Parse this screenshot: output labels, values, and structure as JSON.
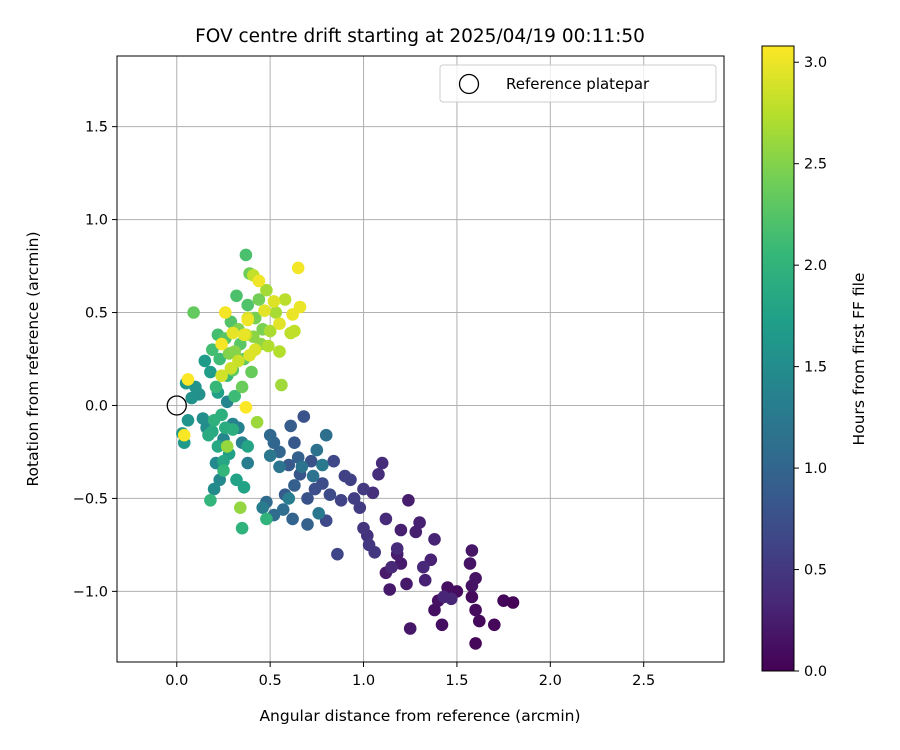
{
  "chart_data": {
    "type": "scatter",
    "title": "FOV centre drift starting at 2025/04/19 00:11:50",
    "xlabel": "Angular distance from reference (arcmin)",
    "ylabel": "Rotation from reference (arcmin)",
    "xlim": [
      -0.32,
      2.93
    ],
    "ylim": [
      -1.38,
      1.88
    ],
    "xticks": [
      0.0,
      0.5,
      1.0,
      1.5,
      2.0,
      2.5
    ],
    "xtick_labels": [
      "0.0",
      "0.5",
      "1.0",
      "1.5",
      "2.0",
      "2.5"
    ],
    "yticks": [
      -1.0,
      -0.5,
      0.0,
      0.5,
      1.0,
      1.5
    ],
    "ytick_labels": [
      "−1.0",
      "−0.5",
      "0.0",
      "0.5",
      "1.0",
      "1.5"
    ],
    "grid": true,
    "legend": {
      "position": "top-right",
      "entries": [
        "Reference platepar"
      ]
    },
    "reference_point": {
      "x": 0.0,
      "y": 0.0,
      "label": "Reference platepar"
    },
    "colorbar": {
      "label": "Hours from first FF file",
      "colormap": "viridis",
      "range": [
        0.0,
        3.08
      ],
      "ticks": [
        0.0,
        0.5,
        1.0,
        1.5,
        2.0,
        2.5,
        3.0
      ],
      "tick_labels": [
        "0.0",
        "0.5",
        "1.0",
        "1.5",
        "2.0",
        "2.5",
        "3.0"
      ]
    },
    "points": [
      [
        1.8,
        -1.06,
        0.02
      ],
      [
        1.75,
        -1.05,
        0.04
      ],
      [
        1.6,
        -1.28,
        0.05
      ],
      [
        1.7,
        -1.18,
        0.06
      ],
      [
        1.62,
        -1.16,
        0.07
      ],
      [
        1.58,
        -1.03,
        0.08
      ],
      [
        1.6,
        -1.1,
        0.09
      ],
      [
        1.5,
        -1.0,
        0.1
      ],
      [
        1.45,
        -0.98,
        0.11
      ],
      [
        1.42,
        -1.18,
        0.12
      ],
      [
        1.38,
        -1.1,
        0.13
      ],
      [
        1.4,
        -1.05,
        0.14
      ],
      [
        1.58,
        -0.97,
        0.15
      ],
      [
        1.6,
        -0.93,
        0.16
      ],
      [
        1.57,
        -0.85,
        0.17
      ],
      [
        1.58,
        -0.78,
        0.18
      ],
      [
        1.25,
        -1.2,
        0.19
      ],
      [
        1.23,
        -0.96,
        0.2
      ],
      [
        1.14,
        -0.99,
        0.21
      ],
      [
        1.12,
        -0.9,
        0.22
      ],
      [
        1.2,
        -0.85,
        0.23
      ],
      [
        1.18,
        -0.8,
        0.24
      ],
      [
        1.24,
        -0.51,
        0.25
      ],
      [
        1.2,
        -0.67,
        0.26
      ],
      [
        1.28,
        -0.68,
        0.27
      ],
      [
        1.3,
        -0.63,
        0.28
      ],
      [
        1.33,
        -0.94,
        0.29
      ],
      [
        1.36,
        -0.83,
        0.3
      ],
      [
        1.38,
        -0.72,
        0.31
      ],
      [
        1.43,
        -1.03,
        0.32
      ],
      [
        1.47,
        -1.04,
        0.33
      ],
      [
        1.32,
        -0.87,
        0.34
      ],
      [
        1.15,
        -0.87,
        0.35
      ],
      [
        1.18,
        -0.77,
        0.36
      ],
      [
        1.12,
        -0.61,
        0.37
      ],
      [
        1.1,
        -0.31,
        0.38
      ],
      [
        1.08,
        -0.37,
        0.4
      ],
      [
        1.05,
        -0.47,
        0.42
      ],
      [
        1.02,
        -0.7,
        0.44
      ],
      [
        1.0,
        -0.66,
        0.46
      ],
      [
        1.06,
        -0.79,
        0.48
      ],
      [
        1.03,
        -0.75,
        0.5
      ],
      [
        1.0,
        -0.45,
        0.52
      ],
      [
        0.98,
        -0.55,
        0.54
      ],
      [
        0.95,
        -0.5,
        0.56
      ],
      [
        0.93,
        -0.4,
        0.58
      ],
      [
        0.9,
        -0.38,
        0.6
      ],
      [
        0.88,
        -0.51,
        0.62
      ],
      [
        0.86,
        -0.8,
        0.64
      ],
      [
        0.84,
        -0.3,
        0.66
      ],
      [
        0.8,
        -0.62,
        0.68
      ],
      [
        0.82,
        -0.48,
        0.7
      ],
      [
        0.78,
        -0.42,
        0.72
      ],
      [
        0.74,
        -0.45,
        0.74
      ],
      [
        0.72,
        -0.3,
        0.76
      ],
      [
        0.7,
        -0.5,
        0.78
      ],
      [
        0.68,
        -0.06,
        0.8
      ],
      [
        0.66,
        -0.37,
        0.82
      ],
      [
        0.63,
        -0.2,
        0.84
      ],
      [
        0.6,
        -0.32,
        0.86
      ],
      [
        0.58,
        -0.48,
        0.88
      ],
      [
        0.61,
        -0.11,
        0.9
      ],
      [
        0.63,
        -0.43,
        0.92
      ],
      [
        0.65,
        -0.28,
        0.94
      ],
      [
        0.7,
        -0.64,
        0.96
      ],
      [
        0.62,
        -0.61,
        0.98
      ],
      [
        0.55,
        -0.25,
        1.0
      ],
      [
        0.52,
        -0.2,
        1.02
      ],
      [
        0.5,
        -0.16,
        1.04
      ],
      [
        0.48,
        -0.52,
        1.06
      ],
      [
        0.52,
        -0.59,
        1.08
      ],
      [
        0.57,
        -0.56,
        1.1
      ],
      [
        0.8,
        -0.16,
        1.12
      ],
      [
        0.75,
        -0.24,
        1.14
      ],
      [
        0.73,
        -0.38,
        1.16
      ],
      [
        0.67,
        -0.33,
        1.18
      ],
      [
        0.55,
        -0.33,
        1.2
      ],
      [
        0.5,
        -0.27,
        1.22
      ],
      [
        0.76,
        -0.58,
        1.24
      ],
      [
        0.78,
        -0.32,
        1.26
      ],
      [
        0.46,
        -0.55,
        1.28
      ],
      [
        0.6,
        -0.5,
        1.3
      ],
      [
        0.38,
        -0.31,
        1.32
      ],
      [
        0.35,
        -0.2,
        1.34
      ],
      [
        0.33,
        -0.12,
        1.36
      ],
      [
        0.3,
        -0.1,
        1.38
      ],
      [
        0.27,
        0.02,
        1.4
      ],
      [
        0.25,
        -0.18,
        1.42
      ],
      [
        0.23,
        -0.4,
        1.44
      ],
      [
        0.21,
        -0.31,
        1.46
      ],
      [
        0.2,
        -0.45,
        1.48
      ],
      [
        0.16,
        -0.12,
        1.5
      ],
      [
        0.14,
        -0.07,
        1.52
      ],
      [
        0.12,
        0.06,
        1.54
      ],
      [
        0.1,
        0.1,
        1.56
      ],
      [
        0.08,
        0.04,
        1.58
      ],
      [
        0.06,
        -0.08,
        1.6
      ],
      [
        0.05,
        0.12,
        1.62
      ],
      [
        0.03,
        -0.15,
        1.64
      ],
      [
        0.04,
        -0.2,
        1.66
      ],
      [
        0.15,
        0.24,
        1.68
      ],
      [
        0.18,
        0.18,
        1.7
      ],
      [
        0.22,
        0.07,
        1.72
      ],
      [
        0.28,
        -0.26,
        1.74
      ],
      [
        0.32,
        -0.4,
        1.76
      ],
      [
        0.36,
        -0.44,
        1.78
      ],
      [
        0.38,
        -0.22,
        1.8
      ],
      [
        0.25,
        -0.3,
        1.82
      ],
      [
        0.22,
        -0.22,
        1.84
      ],
      [
        0.19,
        -0.14,
        1.86
      ],
      [
        0.17,
        -0.16,
        1.88
      ],
      [
        0.26,
        -0.12,
        1.9
      ],
      [
        0.3,
        -0.13,
        1.92
      ],
      [
        0.24,
        -0.05,
        1.94
      ],
      [
        0.2,
        -0.08,
        1.96
      ],
      [
        0.35,
        -0.66,
        1.98
      ],
      [
        0.48,
        -0.61,
        2.0
      ],
      [
        0.18,
        -0.51,
        2.02
      ],
      [
        0.25,
        -0.35,
        2.04
      ],
      [
        0.21,
        0.1,
        2.06
      ],
      [
        0.27,
        0.16,
        2.08
      ],
      [
        0.31,
        0.05,
        2.1
      ],
      [
        0.23,
        0.25,
        2.12
      ],
      [
        0.19,
        0.3,
        2.14
      ],
      [
        0.22,
        0.38,
        2.16
      ],
      [
        0.37,
        0.81,
        2.18
      ],
      [
        0.32,
        0.59,
        2.2
      ],
      [
        0.38,
        0.54,
        2.22
      ],
      [
        0.29,
        0.45,
        2.24
      ],
      [
        0.26,
        0.36,
        2.26
      ],
      [
        0.34,
        0.33,
        2.28
      ],
      [
        0.36,
        0.25,
        2.3
      ],
      [
        0.3,
        0.19,
        2.32
      ],
      [
        0.09,
        0.5,
        2.34
      ],
      [
        0.4,
        0.18,
        2.36
      ],
      [
        0.35,
        0.1,
        2.38
      ],
      [
        0.39,
        0.71,
        2.4
      ],
      [
        0.44,
        0.57,
        2.42
      ],
      [
        0.42,
        0.47,
        2.44
      ],
      [
        0.46,
        0.41,
        2.46
      ],
      [
        0.33,
        0.41,
        2.48
      ],
      [
        0.28,
        0.28,
        2.5
      ],
      [
        0.31,
        0.29,
        2.52
      ],
      [
        0.41,
        0.37,
        2.54
      ],
      [
        0.45,
        0.33,
        2.56
      ],
      [
        0.34,
        -0.55,
        2.58
      ],
      [
        0.27,
        -0.22,
        2.6
      ],
      [
        0.43,
        -0.09,
        2.62
      ],
      [
        0.56,
        0.11,
        2.64
      ],
      [
        0.48,
        0.62,
        2.66
      ],
      [
        0.53,
        0.5,
        2.68
      ],
      [
        0.5,
        0.4,
        2.7
      ],
      [
        0.49,
        0.32,
        2.72
      ],
      [
        0.55,
        0.29,
        2.74
      ],
      [
        0.58,
        0.57,
        2.76
      ],
      [
        0.61,
        0.39,
        2.78
      ],
      [
        0.63,
        0.4,
        2.79
      ],
      [
        0.41,
        0.7,
        2.8
      ],
      [
        0.37,
        0.38,
        2.82
      ],
      [
        0.33,
        0.24,
        2.84
      ],
      [
        0.29,
        0.2,
        2.86
      ],
      [
        0.24,
        0.16,
        2.88
      ],
      [
        0.38,
        0.47,
        2.9
      ],
      [
        0.42,
        0.3,
        2.92
      ],
      [
        0.39,
        0.27,
        2.93
      ],
      [
        0.52,
        0.56,
        2.94
      ],
      [
        0.55,
        0.44,
        2.95
      ],
      [
        0.47,
        0.51,
        2.96
      ],
      [
        0.3,
        0.39,
        2.97
      ],
      [
        0.36,
        0.38,
        2.98
      ],
      [
        0.66,
        0.53,
        2.99
      ],
      [
        0.62,
        0.49,
        3.0
      ],
      [
        0.38,
        0.46,
        3.01
      ],
      [
        0.44,
        0.67,
        3.02
      ],
      [
        0.65,
        0.74,
        3.03
      ],
      [
        0.26,
        0.5,
        3.04
      ],
      [
        0.24,
        0.33,
        3.05
      ],
      [
        0.04,
        -0.16,
        3.06
      ],
      [
        0.06,
        0.14,
        3.07
      ],
      [
        0.37,
        -0.01,
        3.07
      ]
    ]
  }
}
